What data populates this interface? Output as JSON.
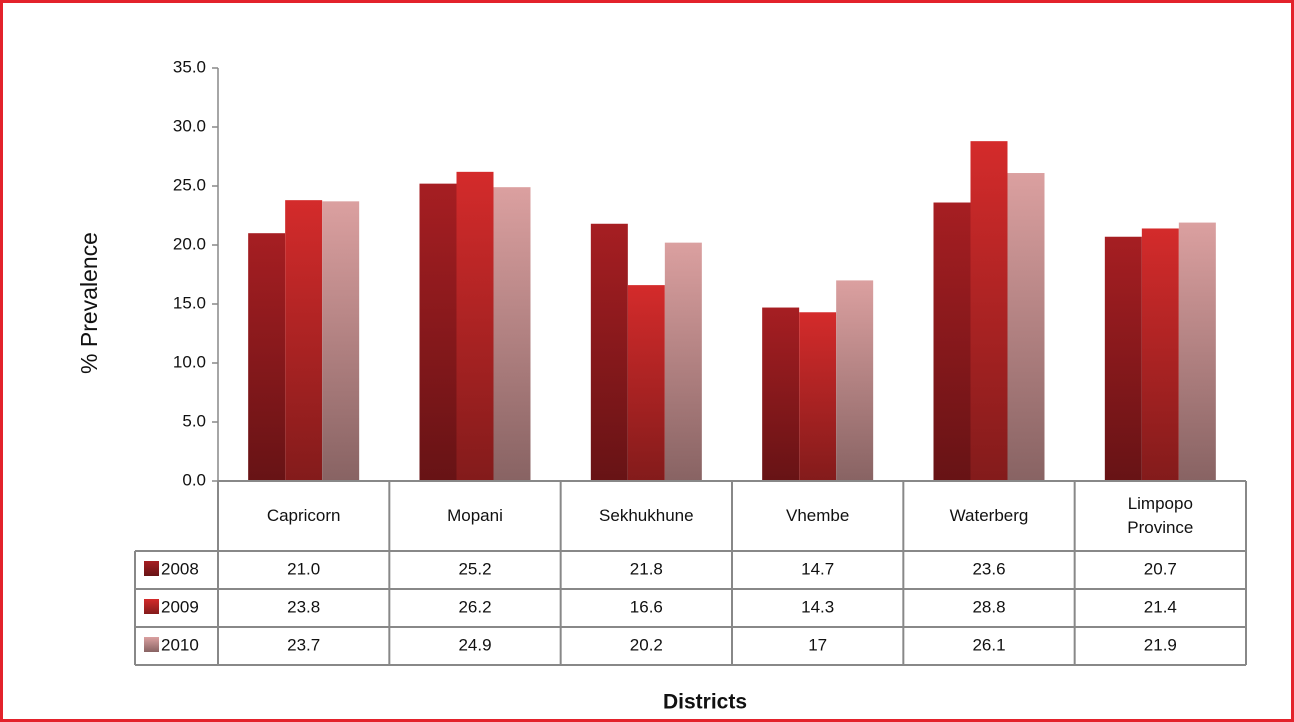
{
  "chart_data": {
    "type": "bar",
    "y_label": "% Prevalence",
    "x_label": "Districts",
    "categories": [
      "Capricorn",
      "Mopani",
      "Sekhukhune",
      "Vhembe",
      "Waterberg",
      "Limpopo Province"
    ],
    "series": [
      {
        "name": "2008",
        "color": "#a61e22",
        "values": [
          21.0,
          25.2,
          21.8,
          14.7,
          23.6,
          20.7
        ],
        "value_labels": [
          "21.0",
          "25.2",
          "21.8",
          "14.7",
          "23.6",
          "20.7"
        ]
      },
      {
        "name": "2009",
        "color": "#d42b2b",
        "values": [
          23.8,
          26.2,
          16.6,
          14.3,
          28.8,
          21.4
        ],
        "value_labels": [
          "23.8",
          "26.2",
          "16.6",
          "14.3",
          "28.8",
          "21.4"
        ]
      },
      {
        "name": "2010",
        "color": "#dba0a0",
        "values": [
          23.7,
          24.9,
          20.2,
          17,
          26.1,
          21.9
        ],
        "value_labels": [
          "23.7",
          "24.9",
          "20.2",
          "17",
          "26.1",
          "21.9"
        ]
      }
    ],
    "ylim": [
      0,
      35
    ],
    "yticks": [
      {
        "value": 0,
        "label": "0.0"
      },
      {
        "value": 5,
        "label": "5.0"
      },
      {
        "value": 10,
        "label": "10.0"
      },
      {
        "value": 15,
        "label": "15.0"
      },
      {
        "value": 20,
        "label": "20.0"
      },
      {
        "value": 25,
        "label": "25.0"
      },
      {
        "value": 30,
        "label": "30.0"
      },
      {
        "value": 35,
        "label": "35.0"
      }
    ]
  }
}
